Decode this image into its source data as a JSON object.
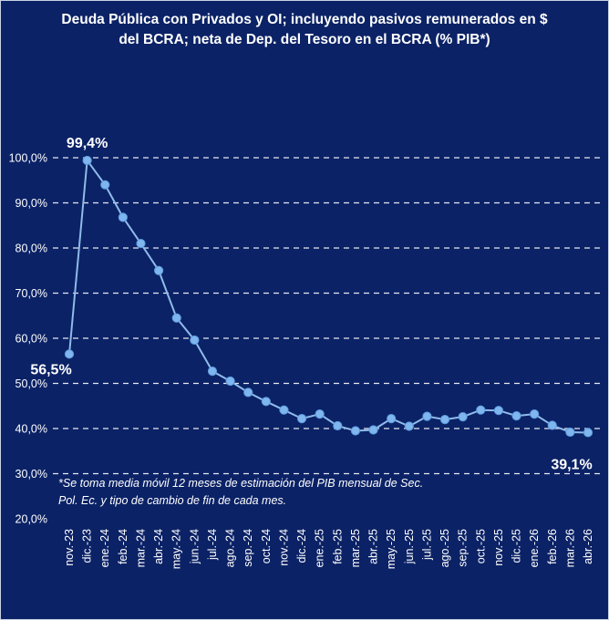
{
  "chart_data": {
    "type": "line",
    "title_lines": [
      "Deuda Pública con Privados y OI; incluyendo pasivos remunerados en $",
      "del BCRA; neta de Dep. del Tesoro en el BCRA (% PIB*)"
    ],
    "categories": [
      "nov.-23",
      "dic.-23",
      "ene.-24",
      "feb.-24",
      "mar.-24",
      "abr.-24",
      "may.-24",
      "jun.-24",
      "jul.-24",
      "ago.-24",
      "sep.-24",
      "oct.-24",
      "nov.-24",
      "dic.-24",
      "ene.-25",
      "feb.-25",
      "mar.-25",
      "abr.-25",
      "may.-25",
      "jun.-25",
      "jul.-25",
      "ago.-25",
      "sep.-25",
      "oct.-25",
      "nov.-25",
      "dic.-25",
      "ene.-26",
      "feb.-26",
      "mar.-26",
      "abr.-26"
    ],
    "series": [
      {
        "values": [
          56.5,
          99.4,
          94.0,
          86.8,
          81.0,
          75.0,
          64.5,
          59.6,
          52.7,
          50.5,
          48.0,
          46.0,
          44.1,
          42.2,
          43.2,
          40.6,
          39.5,
          39.7,
          42.2,
          40.5,
          42.7,
          42.0,
          42.6,
          44.1,
          44.0,
          42.8,
          43.2,
          40.7,
          39.2,
          39.1
        ],
        "color": "#7fb6ee"
      }
    ],
    "y_ticks": [
      "20,0%",
      "30,0%",
      "40,0%",
      "50,0%",
      "60,0%",
      "70,0%",
      "80,0%",
      "90,0%",
      "100,0%"
    ],
    "ylim": [
      20,
      100
    ],
    "grid": true,
    "data_labels": [
      {
        "index": 0,
        "text": "56,5%"
      },
      {
        "index": 1,
        "text": "99,4%"
      },
      {
        "index": 29,
        "text": "39,1%"
      }
    ],
    "note_lines": [
      "*Se toma media móvil 12 meses de estimación del PIB mensual de Sec.",
      "Pol. Ec. y tipo de cambio de fin de cada mes."
    ],
    "background": "#0b2266",
    "text_color": "#ffffff"
  }
}
